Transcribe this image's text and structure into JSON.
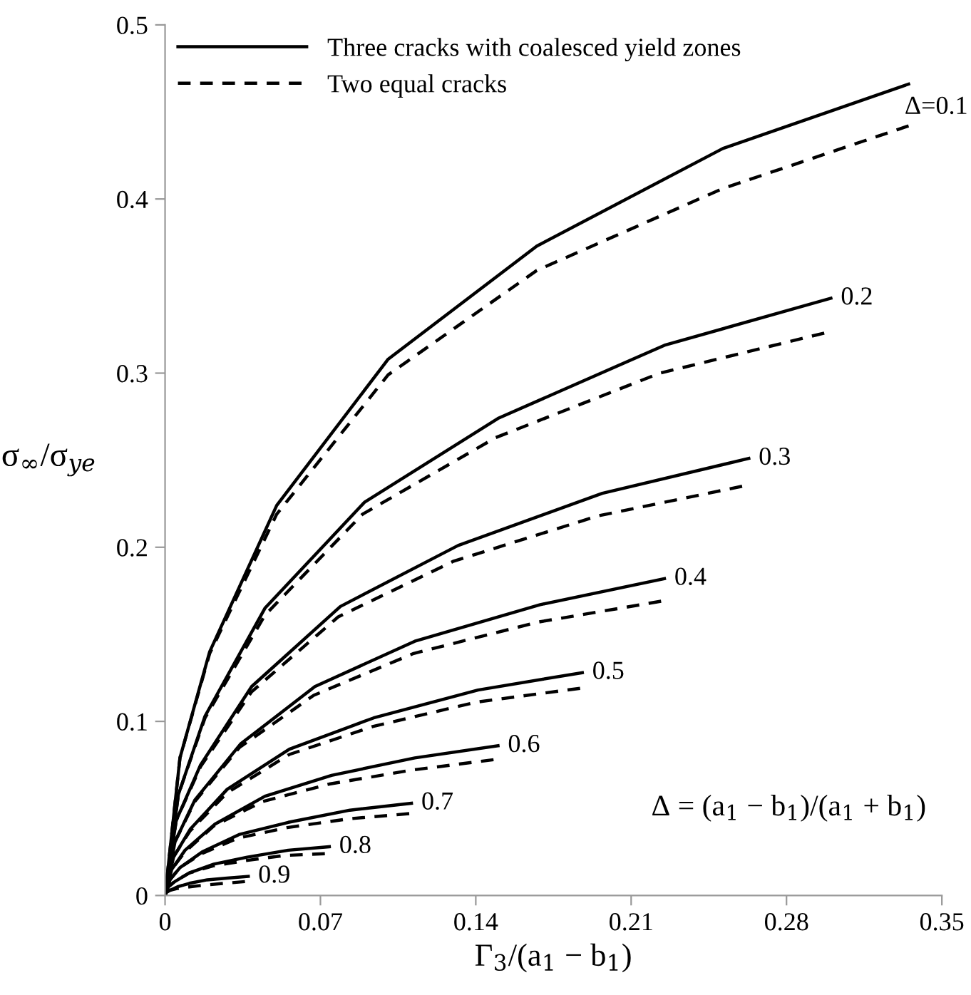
{
  "chart_data": {
    "type": "line",
    "xlabel": "Γ$_{3}$/(a$_{1}$ − b$_{1}$)",
    "ylabel": "σ$_{∞}$/σ$_{ye}$",
    "xlim": [
      0,
      0.35
    ],
    "ylim": [
      0,
      0.5
    ],
    "xticks": [
      0,
      0.07,
      0.14,
      0.21,
      0.28,
      0.35
    ],
    "yticks": [
      0,
      0.1,
      0.2,
      0.3,
      0.4,
      0.5
    ],
    "grid": false,
    "legend": "top left",
    "marker": "none",
    "series": [
      {
        "name": "Three cracks with coalesced yield zones",
        "color": "#000000",
        "line_style": "solid",
        "x": [
          0,
          0.0067,
          0.0201,
          0.0503,
          0.1005,
          0.1675,
          0.2513,
          0.335
        ],
        "values": [
          0,
          0.079,
          0.14,
          0.224,
          0.308,
          0.373,
          0.429,
          0.466
        ]
      },
      {
        "name": "Two equal cracks",
        "color": "#000000",
        "line_style": "dashed",
        "x": [
          0,
          0.0067,
          0.0201,
          0.0503,
          0.1005,
          0.1675,
          0.2513,
          0.335
        ],
        "values": [
          0,
          0.079,
          0.139,
          0.219,
          0.299,
          0.359,
          0.406,
          0.442
        ]
      },
      {
        "color": "#000000",
        "line_style": "solid",
        "x": [
          0,
          0.006,
          0.018,
          0.045,
          0.09,
          0.15,
          0.225,
          0.3
        ],
        "values": [
          0,
          0.058,
          0.103,
          0.165,
          0.226,
          0.274,
          0.316,
          0.343
        ]
      },
      {
        "color": "#000000",
        "line_style": "dashed",
        "x": [
          0,
          0.006,
          0.018,
          0.045,
          0.089,
          0.149,
          0.223,
          0.297
        ],
        "values": [
          0,
          0.058,
          0.102,
          0.161,
          0.219,
          0.263,
          0.3,
          0.323
        ]
      },
      {
        "color": "#000000",
        "line_style": "solid",
        "x": [
          0,
          0.005,
          0.016,
          0.039,
          0.079,
          0.132,
          0.197,
          0.263
        ],
        "values": [
          0,
          0.043,
          0.075,
          0.12,
          0.166,
          0.201,
          0.231,
          0.251
        ]
      },
      {
        "color": "#000000",
        "line_style": "dashed",
        "x": [
          0,
          0.005,
          0.016,
          0.039,
          0.078,
          0.13,
          0.195,
          0.26
        ],
        "values": [
          0,
          0.043,
          0.074,
          0.117,
          0.16,
          0.192,
          0.218,
          0.235
        ]
      },
      {
        "color": "#000000",
        "line_style": "solid",
        "x": [
          0,
          0.0045,
          0.0135,
          0.034,
          0.0675,
          0.1125,
          0.169,
          0.225
        ],
        "values": [
          0,
          0.031,
          0.055,
          0.087,
          0.12,
          0.146,
          0.167,
          0.182
        ]
      },
      {
        "color": "#000000",
        "line_style": "dashed",
        "x": [
          0,
          0.0045,
          0.0134,
          0.0335,
          0.067,
          0.112,
          0.168,
          0.2235
        ],
        "values": [
          0,
          0.031,
          0.054,
          0.085,
          0.115,
          0.139,
          0.157,
          0.169
        ]
      },
      {
        "color": "#000000",
        "line_style": "solid",
        "x": [
          0,
          0.0038,
          0.0113,
          0.028,
          0.056,
          0.094,
          0.141,
          0.188
        ],
        "values": [
          0,
          0.022,
          0.038,
          0.061,
          0.084,
          0.102,
          0.118,
          0.128
        ]
      },
      {
        "color": "#000000",
        "line_style": "dashed",
        "x": [
          0,
          0.0037,
          0.0112,
          0.028,
          0.056,
          0.0935,
          0.14,
          0.187
        ],
        "values": [
          0,
          0.022,
          0.037,
          0.059,
          0.081,
          0.097,
          0.111,
          0.119
        ]
      },
      {
        "color": "#000000",
        "line_style": "solid",
        "x": [
          0,
          0.003,
          0.009,
          0.0225,
          0.045,
          0.075,
          0.1125,
          0.15
        ],
        "values": [
          0,
          0.015,
          0.026,
          0.041,
          0.057,
          0.069,
          0.079,
          0.086
        ]
      },
      {
        "color": "#000000",
        "line_style": "dashed",
        "x": [
          0,
          0.003,
          0.0089,
          0.022,
          0.044,
          0.074,
          0.111,
          0.148
        ],
        "values": [
          0,
          0.015,
          0.025,
          0.04,
          0.054,
          0.064,
          0.072,
          0.078
        ]
      },
      {
        "color": "#000000",
        "line_style": "solid",
        "x": [
          0,
          0.0022,
          0.0067,
          0.0167,
          0.0333,
          0.0555,
          0.0833,
          0.111
        ],
        "values": [
          0,
          0.009,
          0.016,
          0.025,
          0.035,
          0.042,
          0.049,
          0.053
        ]
      },
      {
        "color": "#000000",
        "line_style": "dashed",
        "x": [
          0,
          0.0022,
          0.0066,
          0.0165,
          0.033,
          0.055,
          0.0825,
          0.11
        ],
        "values": [
          0,
          0.009,
          0.016,
          0.024,
          0.033,
          0.039,
          0.044,
          0.047
        ]
      },
      {
        "color": "#000000",
        "line_style": "solid",
        "x": [
          0,
          0.0015,
          0.0044,
          0.011,
          0.022,
          0.037,
          0.0555,
          0.074
        ],
        "values": [
          0,
          0.005,
          0.008,
          0.013,
          0.018,
          0.022,
          0.026,
          0.028
        ]
      },
      {
        "color": "#000000",
        "line_style": "dashed",
        "x": [
          0,
          0.0014,
          0.0043,
          0.011,
          0.0216,
          0.036,
          0.054,
          0.072
        ],
        "values": [
          0,
          0.005,
          0.008,
          0.013,
          0.017,
          0.02,
          0.023,
          0.024
        ]
      },
      {
        "color": "#000000",
        "line_style": "solid",
        "x": [
          0,
          0.0008,
          0.0023,
          0.0056,
          0.011,
          0.019,
          0.028,
          0.0375
        ],
        "values": [
          0,
          0.002,
          0.003,
          0.005,
          0.007,
          0.009,
          0.01,
          0.011
        ]
      },
      {
        "color": "#000000",
        "line_style": "dashed",
        "x": [
          0,
          0.0007,
          0.0022,
          0.0054,
          0.011,
          0.018,
          0.027,
          0.036
        ],
        "values": [
          0,
          0.002,
          0.003,
          0.004,
          0.005,
          0.006,
          0.007,
          0.008
        ]
      }
    ],
    "annotations": [
      {
        "text": "Δ=0.1",
        "x": 0.335,
        "y": 0.466
      },
      {
        "text": "0.2",
        "x": 0.3,
        "y": 0.343
      },
      {
        "text": "0.3",
        "x": 0.263,
        "y": 0.251
      },
      {
        "text": "0.4",
        "x": 0.225,
        "y": 0.182
      },
      {
        "text": "0.5",
        "x": 0.188,
        "y": 0.128
      },
      {
        "text": "0.6",
        "x": 0.15,
        "y": 0.086
      },
      {
        "text": "0.7",
        "x": 0.111,
        "y": 0.053
      },
      {
        "text": "0.8",
        "x": 0.074,
        "y": 0.028
      },
      {
        "text": "0.9",
        "x": 0.0375,
        "y": 0.011
      },
      "Δ = (a$_{1}$ − b$_{1}$)/(a$_{1}$ + b$_{1}$)"
    ]
  }
}
